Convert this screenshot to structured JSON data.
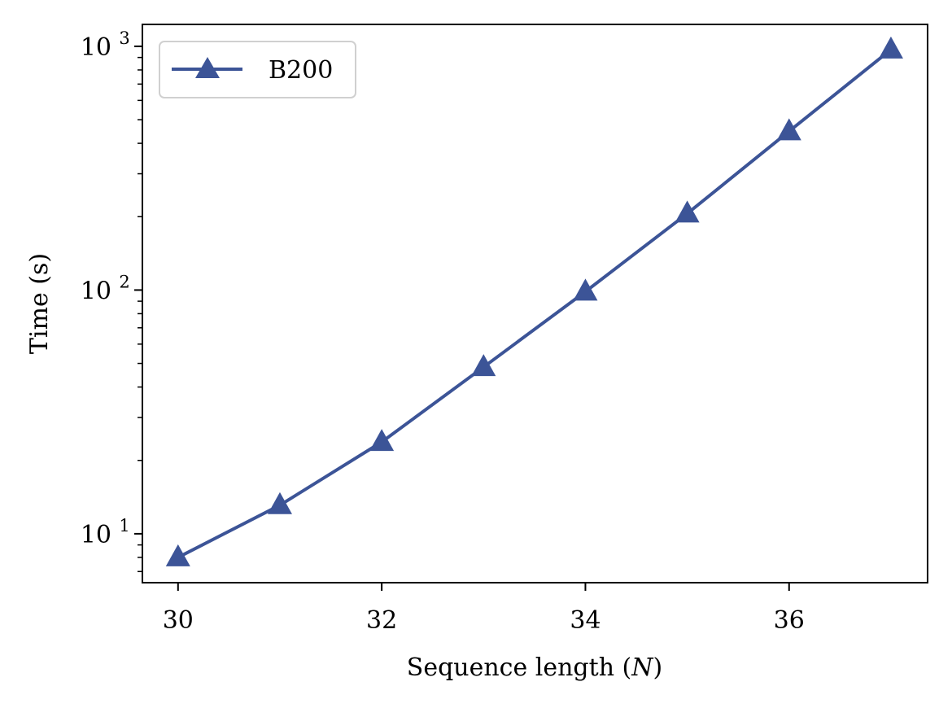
{
  "chart_data": {
    "type": "line",
    "title": "",
    "xlabel": "Sequence length",
    "xlabel_var": "N",
    "ylabel": "Time (s)",
    "yscale": "log",
    "xlim": [
      29.65,
      37.36
    ],
    "ylim": [
      6.3,
      1230
    ],
    "xticks": [
      30,
      32,
      34,
      36
    ],
    "xtick_labels": [
      "30",
      "32",
      "34",
      "36"
    ],
    "yticks": [
      10,
      100,
      1000
    ],
    "ytick_labels": [
      {
        "base": "10",
        "exp": "1"
      },
      {
        "base": "10",
        "exp": "2"
      },
      {
        "base": "10",
        "exp": "3"
      }
    ],
    "grid": false,
    "legend_position": "top-left",
    "series": [
      {
        "name": "B200",
        "color": "#3c5497",
        "marker": "triangle-up",
        "x": [
          30,
          31,
          32,
          33,
          34,
          35,
          36,
          37
        ],
        "values": [
          8.0,
          13.1,
          23.8,
          48.3,
          98.5,
          206,
          448,
          970
        ]
      }
    ]
  }
}
